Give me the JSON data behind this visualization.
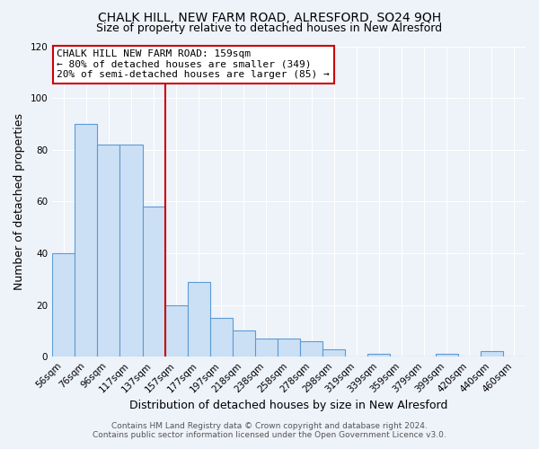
{
  "title": "CHALK HILL, NEW FARM ROAD, ALRESFORD, SO24 9QH",
  "subtitle": "Size of property relative to detached houses in New Alresford",
  "xlabel": "Distribution of detached houses by size in New Alresford",
  "ylabel": "Number of detached properties",
  "bar_labels": [
    "56sqm",
    "76sqm",
    "96sqm",
    "117sqm",
    "137sqm",
    "157sqm",
    "177sqm",
    "197sqm",
    "218sqm",
    "238sqm",
    "258sqm",
    "278sqm",
    "298sqm",
    "319sqm",
    "339sqm",
    "359sqm",
    "379sqm",
    "399sqm",
    "420sqm",
    "440sqm",
    "460sqm"
  ],
  "bar_values": [
    40,
    90,
    82,
    82,
    58,
    20,
    29,
    15,
    10,
    7,
    7,
    6,
    3,
    0,
    1,
    0,
    0,
    1,
    0,
    2,
    0
  ],
  "bar_color": "#cce0f5",
  "bar_edge_color": "#5b9bd5",
  "property_line_color": "#cc0000",
  "annotation_box_edge_color": "#cc0000",
  "annotation_lines": [
    "CHALK HILL NEW FARM ROAD: 159sqm",
    "← 80% of detached houses are smaller (349)",
    "20% of semi-detached houses are larger (85) →"
  ],
  "ylim": [
    0,
    120
  ],
  "yticks": [
    0,
    20,
    40,
    60,
    80,
    100,
    120
  ],
  "footer1": "Contains HM Land Registry data © Crown copyright and database right 2024.",
  "footer2": "Contains public sector information licensed under the Open Government Licence v3.0.",
  "bg_color": "#eef2f9",
  "plot_bg_color": "#eef2f9",
  "grid_color": "#ffffff",
  "title_fontsize": 10,
  "subtitle_fontsize": 9,
  "tick_fontsize": 7.5,
  "axis_label_fontsize": 9,
  "footer_fontsize": 6.5
}
